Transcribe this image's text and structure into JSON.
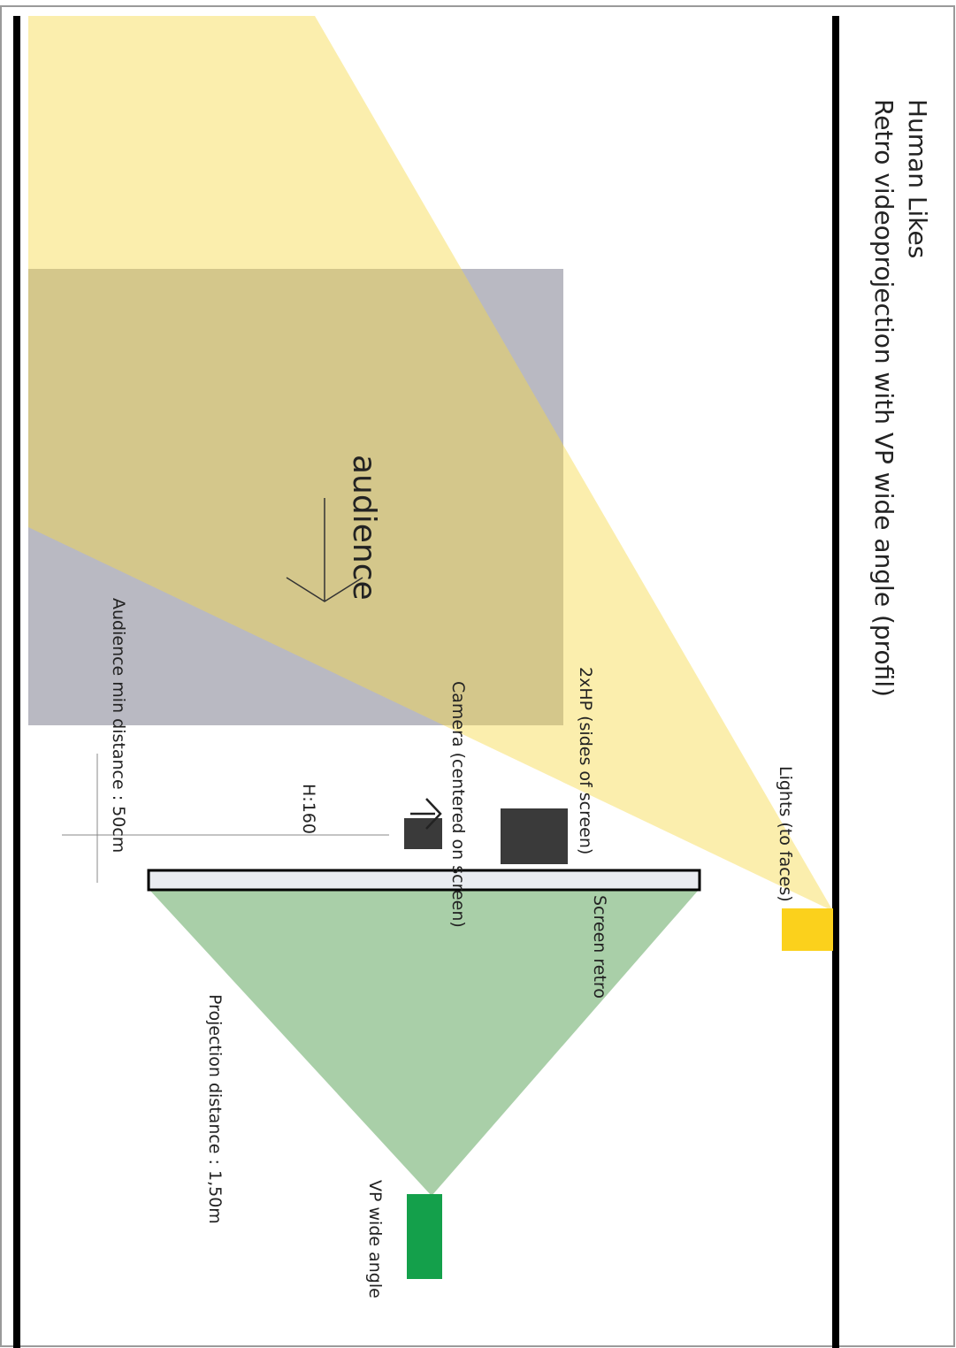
{
  "title": "Human Likes",
  "subtitle": "Retro videoprojection with VP wide angle (profil)",
  "labels": {
    "lights": "Lights (to faces)",
    "speakers": "2xHP (sides of screen)",
    "camera": "Camera (centered on screen)",
    "screen": "Screen retro",
    "height": "H:160",
    "audience": "audience",
    "audience_min_distance": "Audience min distance : 50cm",
    "projection_distance": "Projection distance : 1,50m",
    "vp": "VP wide angle"
  },
  "colors": {
    "light_beam": "#fbe9a8",
    "audience_zone": "#b9b9c2",
    "projection_cone": "#a9cfa8",
    "light_source": "#fbd11c",
    "projector": "#14a04b",
    "device": "#3a3a3a",
    "screen_fill": "#e9ebf0",
    "wall": "#000000"
  }
}
